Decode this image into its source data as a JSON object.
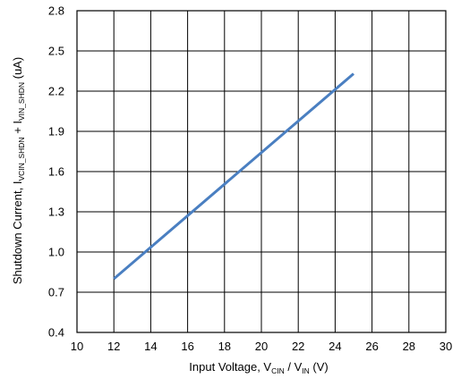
{
  "chart_data": {
    "type": "line",
    "xlabel": {
      "main": "Input Voltage, V",
      "sub1": "CIN",
      "mid": " / V",
      "sub2": "IN",
      "tail": " (V)"
    },
    "ylabel": {
      "main": "Shutdown Current, I",
      "sub1": "VCIN_SHDN",
      "mid": " + I",
      "sub2": "VIN_SHDN",
      "tail": " (uA)"
    },
    "xlim": [
      10,
      30
    ],
    "ylim": [
      0.4,
      2.8
    ],
    "xticks": [
      10,
      12,
      14,
      16,
      18,
      20,
      22,
      24,
      26,
      28,
      30
    ],
    "xtick_labels": [
      "10",
      "12",
      "14",
      "16",
      "18",
      "20",
      "22",
      "24",
      "26",
      "28",
      "30"
    ],
    "yticks": [
      0.4,
      0.7,
      1.0,
      1.3,
      1.6,
      1.9,
      2.2,
      2.5,
      2.8
    ],
    "ytick_labels": [
      "0.4",
      "0.7",
      "1.0",
      "1.3",
      "1.6",
      "1.9",
      "2.2",
      "2.5",
      "2.8"
    ],
    "grid": true,
    "series": [
      {
        "color": "#4a7fc1",
        "x": [
          12,
          25
        ],
        "y": [
          0.8,
          2.33
        ]
      }
    ]
  }
}
